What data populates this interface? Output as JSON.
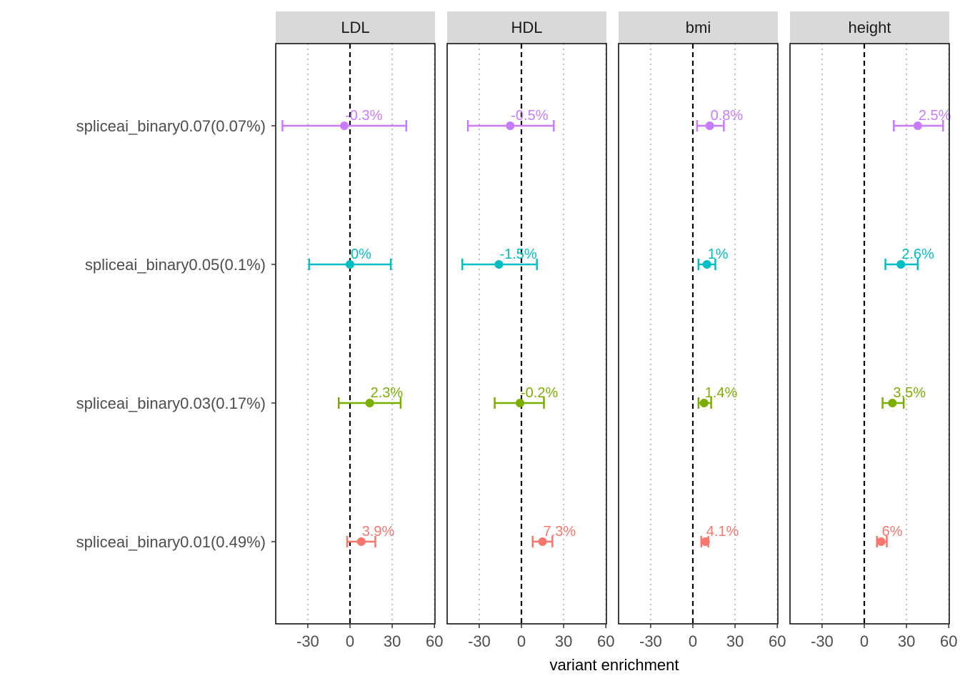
{
  "chart_data": {
    "type": "forest",
    "xlabel": "variant enrichment",
    "xlim": [
      -50,
      61
    ],
    "xticks": [
      -30,
      0,
      30,
      60
    ],
    "xtick_labels": [
      "-30",
      "0",
      "30",
      "60"
    ],
    "reference_line": 0,
    "grid": "dotted vertical at -30, 30, 60",
    "categories": [
      "spliceai_binary0.07(0.07%)",
      "spliceai_binary0.05(0.1%)",
      "spliceai_binary0.03(0.17%)",
      "spliceai_binary0.01(0.49%)"
    ],
    "colors": [
      "#C77CFF",
      "#00BFC4",
      "#7CAE00",
      "#F8766D"
    ],
    "panels": [
      {
        "name": "LDL",
        "points": [
          {
            "label": "-0.3%",
            "est": -4,
            "lo": -48,
            "hi": 40
          },
          {
            "label": "0%",
            "est": 0,
            "lo": -29,
            "hi": 29
          },
          {
            "label": "2.3%",
            "est": 14,
            "lo": -8,
            "hi": 36
          },
          {
            "label": "3.9%",
            "est": 8,
            "lo": -2,
            "hi": 18
          }
        ]
      },
      {
        "name": "HDL",
        "points": [
          {
            "label": "-0.5%",
            "est": -8,
            "lo": -38,
            "hi": 23
          },
          {
            "label": "-1.5%",
            "est": -16,
            "lo": -42,
            "hi": 11
          },
          {
            "label": "-0.2%",
            "est": -1,
            "lo": -19,
            "hi": 16
          },
          {
            "label": "7.3%",
            "est": 15,
            "lo": 8,
            "hi": 22
          }
        ]
      },
      {
        "name": "bmi",
        "points": [
          {
            "label": "0.8%",
            "est": 12,
            "lo": 3,
            "hi": 22
          },
          {
            "label": "1%",
            "est": 10,
            "lo": 4,
            "hi": 16
          },
          {
            "label": "1.4%",
            "est": 8,
            "lo": 4,
            "hi": 13
          },
          {
            "label": "4.1%",
            "est": 9,
            "lo": 6,
            "hi": 11
          }
        ]
      },
      {
        "name": "height",
        "points": [
          {
            "label": "2.5%",
            "est": 38,
            "lo": 21,
            "hi": 56
          },
          {
            "label": "2.6%",
            "est": 26,
            "lo": 15,
            "hi": 38
          },
          {
            "label": "3.5%",
            "est": 20,
            "lo": 13,
            "hi": 28
          },
          {
            "label": "6%",
            "est": 12,
            "lo": 9,
            "hi": 16
          }
        ]
      }
    ]
  }
}
